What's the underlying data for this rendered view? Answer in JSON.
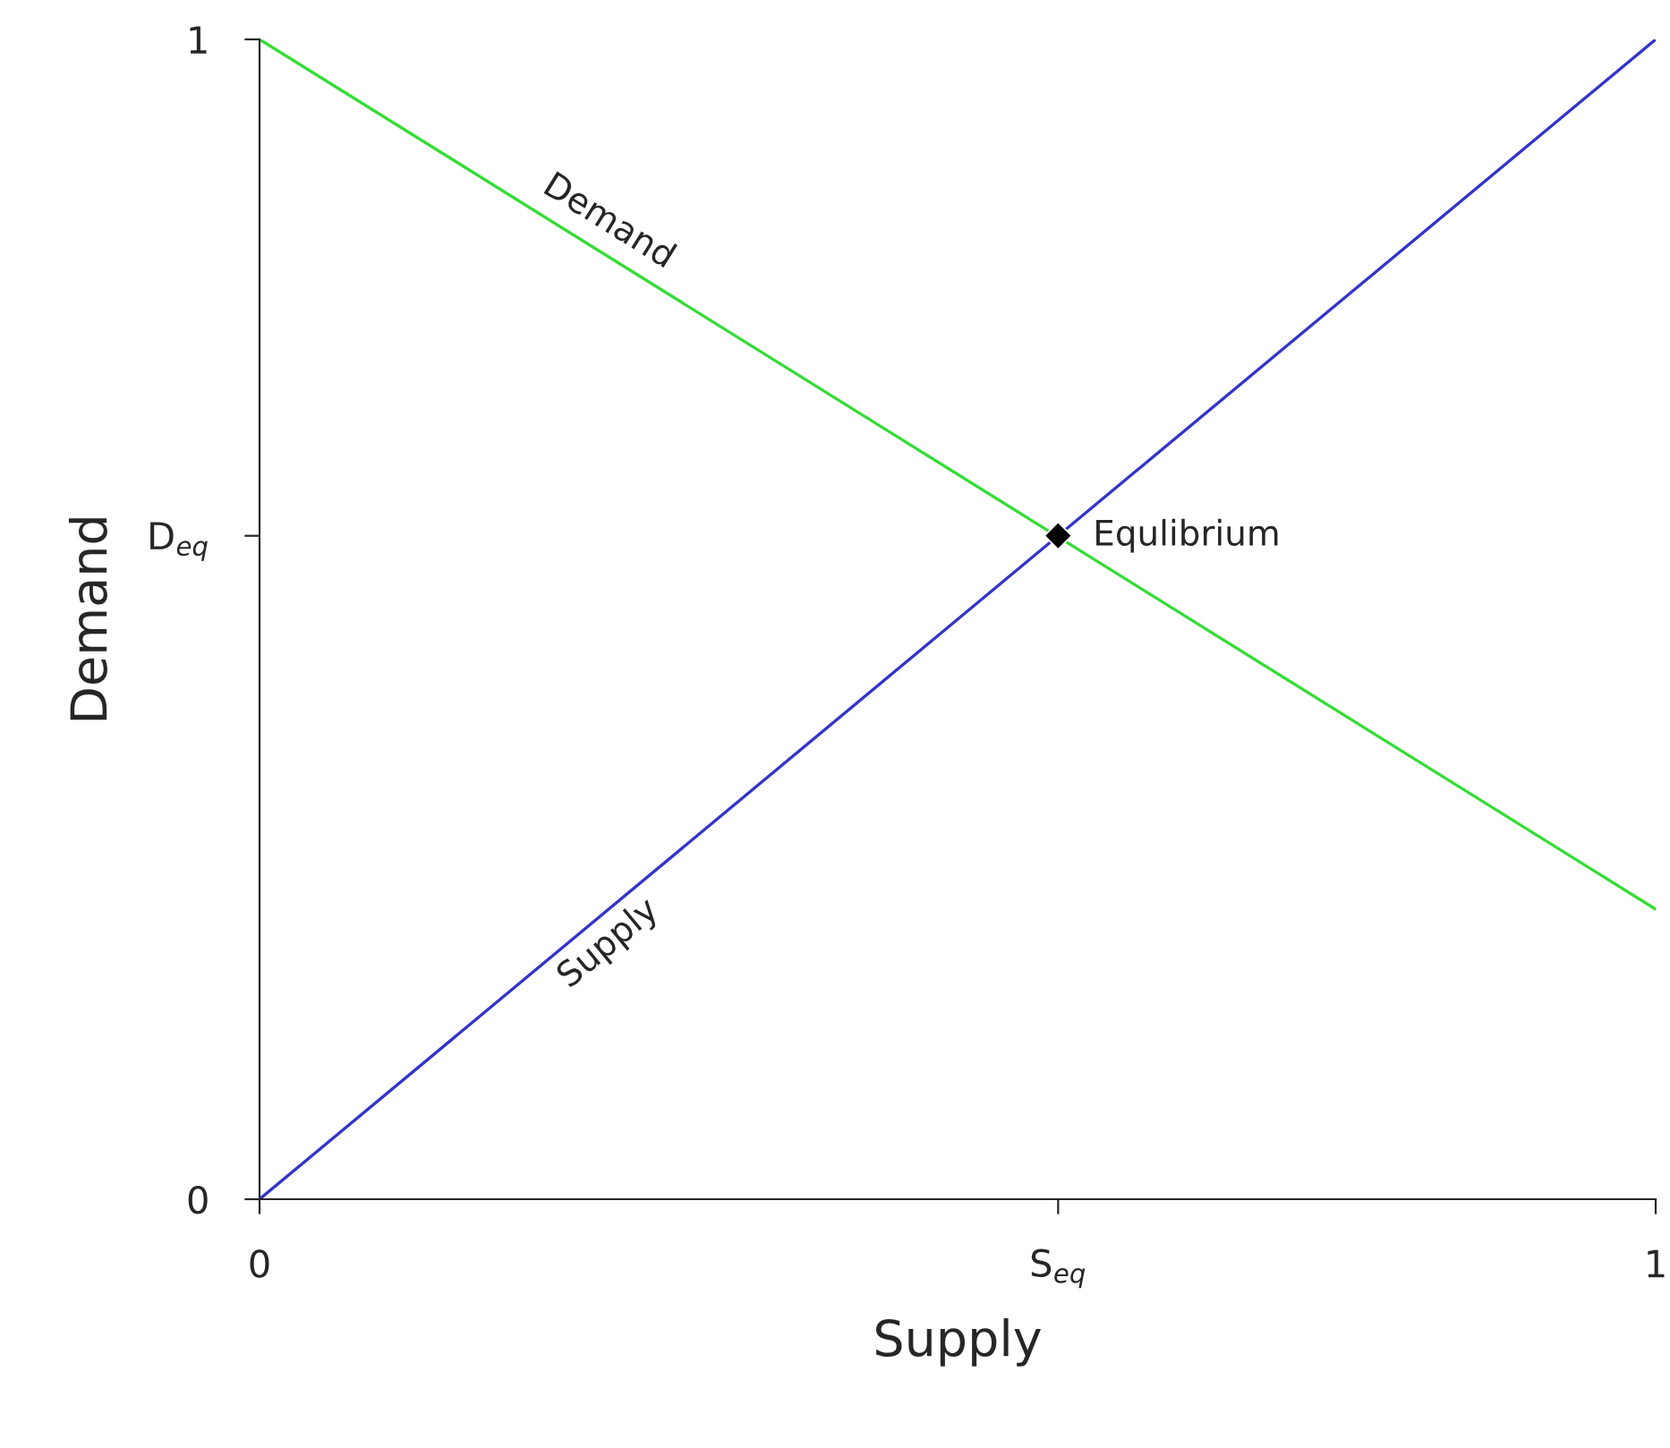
{
  "chart_data": {
    "type": "line",
    "xlabel": "Supply",
    "ylabel": "Demand",
    "xlim": [
      0,
      1
    ],
    "ylim": [
      0,
      1
    ],
    "xticks": [
      0,
      {
        "value": 0.572,
        "label": "S$_{eq}$"
      },
      1
    ],
    "yticks": [
      0,
      {
        "value": 0.572,
        "label": "D$_{eq}$"
      },
      1
    ],
    "grid": false,
    "legend": false,
    "series": [
      {
        "name": "Demand",
        "color": "#33dd33",
        "x": [
          0,
          1
        ],
        "values": [
          1,
          0.25
        ],
        "marker": "none"
      },
      {
        "name": "Supply",
        "color": "#3333cc",
        "x": [
          0,
          1
        ],
        "values": [
          0,
          1
        ],
        "marker": "none"
      },
      {
        "name": "Equlibrium",
        "type": "scatter",
        "color": "#000000",
        "x": [
          0.572
        ],
        "values": [
          0.572
        ],
        "marker": "diamond"
      }
    ]
  }
}
